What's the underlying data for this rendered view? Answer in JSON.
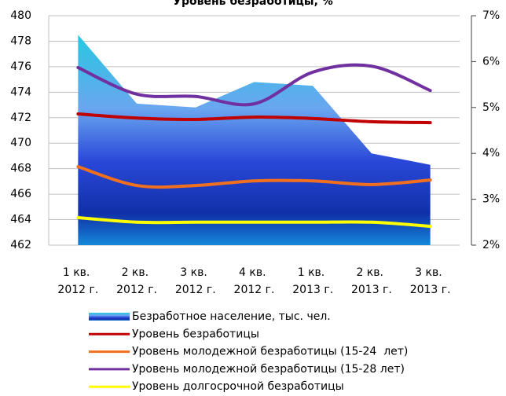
{
  "chart_data": {
    "type": "combo",
    "title": "Уровень безработицы, %",
    "categories": [
      "1 кв. 2012 г.",
      "2 кв. 2012 г.",
      "3 кв. 2012 г.",
      "4 кв. 2012 г.",
      "1 кв. 2013 г.",
      "2 кв. 2013 г.",
      "3 кв. 2013 г."
    ],
    "ylim": [
      462,
      480
    ],
    "yticks": [
      462,
      464,
      466,
      468,
      470,
      472,
      474,
      476,
      478,
      480
    ],
    "y2lim": [
      2,
      7
    ],
    "y2ticks": [
      {
        "value": 2,
        "label": "2%"
      },
      {
        "value": 3,
        "label": "3%"
      },
      {
        "value": 4,
        "label": "4%"
      },
      {
        "value": 5,
        "label": "5%"
      },
      {
        "value": 6,
        "label": "6%"
      },
      {
        "value": 7,
        "label": "7%"
      }
    ],
    "grid": true,
    "series": [
      {
        "name": "Безработное население, тыс. чел.",
        "type": "area",
        "color": "#1f4fd0",
        "values": [
          478.5,
          473.1,
          472.8,
          474.8,
          474.5,
          469.2,
          468.3
        ]
      },
      {
        "name": "Уровень безработицы",
        "type": "line",
        "axis": "y2",
        "color": "#c00000",
        "values": [
          4.86,
          4.77,
          4.74,
          4.79,
          4.76,
          4.69,
          4.67
        ]
      },
      {
        "name": "Уровень молодежной безработицы (15-24  лет)",
        "type": "line",
        "axis": "y2",
        "color": "#f07020",
        "values": [
          3.71,
          3.3,
          3.3,
          3.4,
          3.4,
          3.32,
          3.42
        ]
      },
      {
        "name": "Уровень молодежной безработицы (15-28 лет)",
        "type": "line",
        "axis": "y2",
        "color": "#7030a0",
        "values": [
          5.87,
          5.29,
          5.24,
          5.08,
          5.77,
          5.9,
          5.37
        ]
      },
      {
        "name": "Уровень долгосрочной безработицы",
        "type": "line",
        "axis": "y2",
        "color": "#ffff00",
        "values": [
          2.6,
          2.5,
          2.5,
          2.5,
          2.5,
          2.5,
          2.41
        ]
      }
    ]
  }
}
